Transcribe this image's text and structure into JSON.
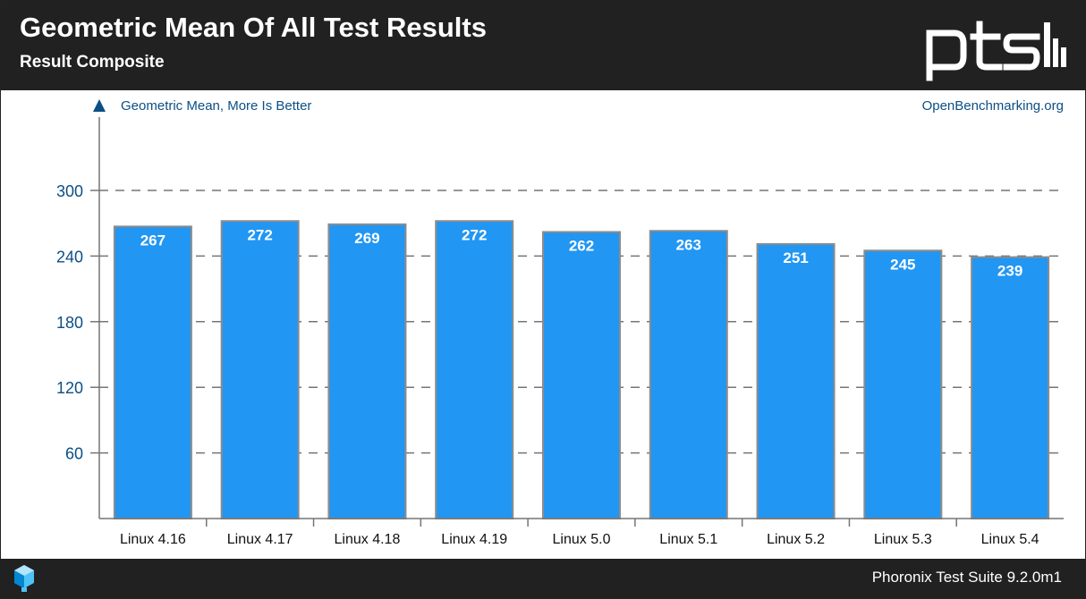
{
  "header": {
    "title": "Geometric Mean Of All Test Results",
    "subtitle": "Result Composite",
    "logo_text": "ptsh"
  },
  "chart_data": {
    "type": "bar",
    "title": "Geometric Mean Of All Test Results",
    "subtitle": "Result Composite",
    "measure_label": "Geometric Mean, More Is Better",
    "source_label": "OpenBenchmarking.org",
    "categories": [
      "Linux 4.16",
      "Linux 4.17",
      "Linux 4.18",
      "Linux 4.19",
      "Linux 5.0",
      "Linux 5.1",
      "Linux 5.2",
      "Linux 5.3",
      "Linux 5.4"
    ],
    "values": [
      267,
      272,
      269,
      272,
      262,
      263,
      251,
      245,
      239
    ],
    "y_ticks": [
      60,
      120,
      180,
      240,
      300
    ],
    "ylim": [
      0,
      300
    ],
    "grid": true,
    "legend": "none"
  },
  "colors": {
    "bar_fill": "#2196f3",
    "bar_stroke": "#8c8c8c",
    "tick_text": "#0c4f85",
    "header_bg": "#212121",
    "grid": "#757575"
  },
  "footer": {
    "text": "Phoronix Test Suite 9.2.0m1"
  }
}
